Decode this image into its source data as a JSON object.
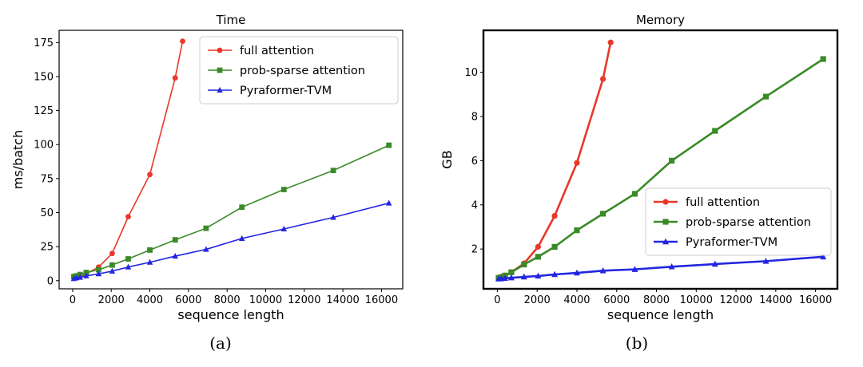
{
  "captions": [
    "(a)",
    "(b)"
  ],
  "chart_data": [
    {
      "type": "line",
      "title": "Time",
      "xlabel": "sequence length",
      "ylabel": "ms/batch",
      "xlim": [
        -700,
        17100
      ],
      "ylim": [
        -6,
        184
      ],
      "xticks": [
        0,
        2000,
        4000,
        6000,
        8000,
        10000,
        12000,
        14000,
        16000
      ],
      "yticks": [
        0,
        25,
        50,
        75,
        100,
        125,
        150,
        175
      ],
      "legend_position": "upper-right",
      "series": [
        {
          "name": "full attention",
          "color": "#e8382a",
          "marker": "circle",
          "x": [
            64,
            192,
            384,
            704,
            1344,
            2048,
            2880,
            4000,
            5312,
            5696
          ],
          "y": [
            2,
            2.5,
            3,
            5,
            10,
            20,
            47,
            78,
            149,
            176
          ]
        },
        {
          "name": "prob-sparse attention",
          "color": "#3a8a28",
          "marker": "square",
          "x": [
            64,
            192,
            384,
            704,
            1344,
            2048,
            2880,
            4000,
            5312,
            6912,
            8768,
            10944,
            13504,
            16384
          ],
          "y": [
            3,
            3.5,
            4.5,
            6,
            8,
            11.5,
            16,
            22.5,
            30,
            38.5,
            54,
            67,
            81,
            99.5
          ]
        },
        {
          "name": "Pyraformer-TVM",
          "color": "#2326e0",
          "marker": "triangle",
          "x": [
            64,
            192,
            384,
            704,
            1344,
            2048,
            2880,
            4000,
            5312,
            6912,
            8768,
            10944,
            13504,
            16384
          ],
          "y": [
            1.5,
            2,
            2.5,
            3.5,
            5,
            7,
            10,
            13.5,
            18,
            23,
            31,
            38,
            46.5,
            57
          ]
        }
      ]
    },
    {
      "type": "line",
      "title": "Memory",
      "xlabel": "sequence length",
      "ylabel": "GB",
      "xlim": [
        -700,
        17100
      ],
      "ylim": [
        0.2,
        11.9
      ],
      "xticks": [
        0,
        2000,
        4000,
        6000,
        8000,
        10000,
        12000,
        14000,
        16000
      ],
      "yticks": [
        2,
        4,
        6,
        8,
        10
      ],
      "legend_position": "center-right",
      "series": [
        {
          "name": "full attention",
          "color": "#e8382a",
          "marker": "circle",
          "x": [
            64,
            192,
            384,
            704,
            1344,
            2048,
            2880,
            4000,
            5312,
            5696
          ],
          "y": [
            0.7,
            0.75,
            0.8,
            0.95,
            1.35,
            2.1,
            3.5,
            5.9,
            9.7,
            11.35
          ]
        },
        {
          "name": "prob-sparse attention",
          "color": "#3a8a28",
          "marker": "square",
          "x": [
            64,
            192,
            384,
            704,
            1344,
            2048,
            2880,
            4000,
            5312,
            6912,
            8768,
            10944,
            13504,
            16384
          ],
          "y": [
            0.7,
            0.72,
            0.8,
            0.95,
            1.3,
            1.65,
            2.1,
            2.85,
            3.6,
            4.5,
            6.0,
            7.35,
            8.9,
            10.6
          ]
        },
        {
          "name": "Pyraformer-TVM",
          "color": "#2326e0",
          "marker": "triangle",
          "x": [
            64,
            192,
            384,
            704,
            1344,
            2048,
            2880,
            4000,
            5312,
            6912,
            8768,
            10944,
            13504,
            16384
          ],
          "y": [
            0.65,
            0.66,
            0.68,
            0.7,
            0.74,
            0.78,
            0.85,
            0.92,
            1.02,
            1.08,
            1.2,
            1.32,
            1.45,
            1.65
          ]
        }
      ]
    }
  ]
}
